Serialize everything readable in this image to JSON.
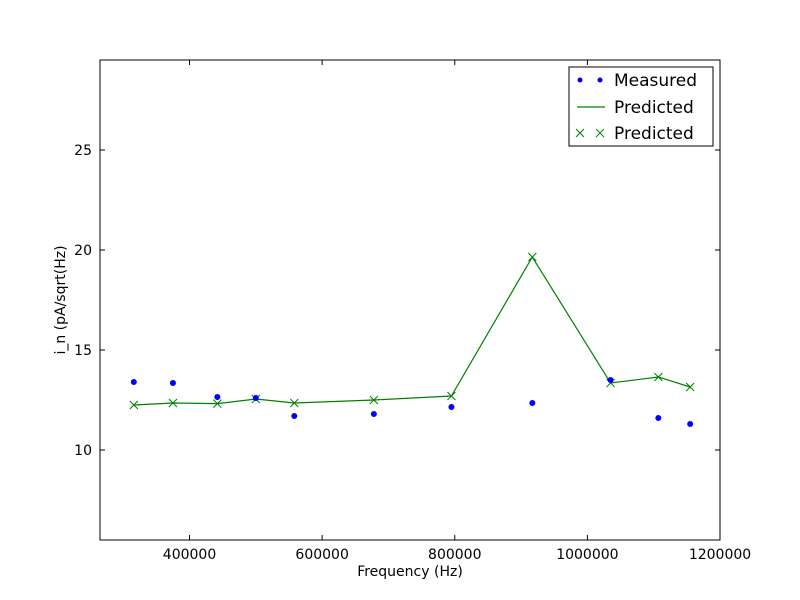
{
  "chart_data": {
    "type": "line",
    "title": "",
    "xlabel": "Frequency (Hz)",
    "ylabel": "i_n (pA/sqrt(Hz)",
    "xlim": [
      265000,
      1200000
    ],
    "ylim": [
      5.5,
      29.5
    ],
    "xticks": [
      400000,
      600000,
      800000,
      1000000,
      1200000
    ],
    "xtick_labels": [
      "400000",
      "600000",
      "800000",
      "1000000",
      "1200000"
    ],
    "yticks": [
      10,
      15,
      20,
      25
    ],
    "ytick_labels": [
      "10",
      "15",
      "20",
      "25"
    ],
    "grid": false,
    "legend_position": "top-right",
    "colors": {
      "measured": "#0000ff",
      "predicted": "#008000"
    },
    "series": [
      {
        "name": "Measured",
        "style": "points",
        "x": [
          316000,
          375000,
          442000,
          500000,
          558000,
          678000,
          795000,
          917000,
          1035000,
          1107000,
          1155000
        ],
        "y": [
          13.4,
          13.35,
          12.65,
          12.6,
          11.7,
          11.8,
          12.15,
          12.35,
          13.5,
          11.6,
          11.3
        ]
      },
      {
        "name": "Predicted",
        "style": "line",
        "x": [
          316000,
          375000,
          442000,
          500000,
          558000,
          678000,
          795000,
          917000,
          1035000,
          1107000,
          1155000
        ],
        "y": [
          12.25,
          12.35,
          12.32,
          12.55,
          12.35,
          12.5,
          12.7,
          19.65,
          13.35,
          13.65,
          13.15
        ]
      },
      {
        "name": "Predicted",
        "style": "x-markers",
        "x": [
          316000,
          375000,
          442000,
          500000,
          558000,
          678000,
          795000,
          917000,
          1035000,
          1107000,
          1155000
        ],
        "y": [
          12.25,
          12.35,
          12.32,
          12.55,
          12.35,
          12.5,
          12.7,
          19.65,
          13.35,
          13.65,
          13.15
        ]
      }
    ]
  }
}
